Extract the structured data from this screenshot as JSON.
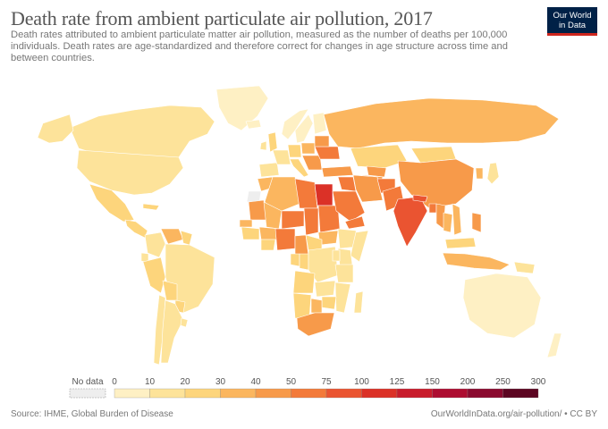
{
  "title": "Death rate from ambient particulate air pollution, 2017",
  "subtitle": "Death rates attributed to ambient particulate matter air pollution, measured as the number of deaths per 100,000 individuals. Death rates are age-standardized and therefore correct for changes in age structure across time and between countries.",
  "logo": {
    "line1": "Our World",
    "line2": "in Data"
  },
  "legend": {
    "no_data_label": "No data",
    "no_data_color": "#eeeeee",
    "ticks": [
      "0",
      "10",
      "20",
      "30",
      "40",
      "50",
      "75",
      "100",
      "125",
      "150",
      "200",
      "250",
      "300"
    ],
    "colors": [
      "#fef0c4",
      "#fde39a",
      "#fdd57c",
      "#fbb65f",
      "#f79a4a",
      "#f37a3a",
      "#ea5431",
      "#db3127",
      "#c81c2c",
      "#ad0d31",
      "#8a0a2f",
      "#5c0622"
    ]
  },
  "footer": {
    "source": "Source: IHME, Global Burden of Disease",
    "url": "OurWorldInData.org/air-pollution/",
    "license": "• CC BY"
  },
  "regions": [
    {
      "name": "Canada",
      "class": 2
    },
    {
      "name": "Alaska",
      "class": 2
    },
    {
      "name": "Greenland",
      "class": 1
    },
    {
      "name": "United States",
      "class": 2
    },
    {
      "name": "Mexico",
      "class": 3
    },
    {
      "name": "Central America",
      "class": 3
    },
    {
      "name": "Cuba",
      "class": 3
    },
    {
      "name": "Colombia",
      "class": 2
    },
    {
      "name": "Venezuela",
      "class": 4
    },
    {
      "name": "Guyana",
      "class": 3
    },
    {
      "name": "Ecuador",
      "class": 2
    },
    {
      "name": "Peru",
      "class": 3
    },
    {
      "name": "Brazil",
      "class": 2
    },
    {
      "name": "Bolivia",
      "class": 3
    },
    {
      "name": "Paraguay",
      "class": 3
    },
    {
      "name": "Chile",
      "class": 2
    },
    {
      "name": "Argentina",
      "class": 2
    },
    {
      "name": "Uruguay",
      "class": 2
    },
    {
      "name": "Iceland",
      "class": 1
    },
    {
      "name": "Ireland",
      "class": 2
    },
    {
      "name": "United Kingdom",
      "class": 3
    },
    {
      "name": "Norway",
      "class": 1
    },
    {
      "name": "Sweden",
      "class": 1
    },
    {
      "name": "Finland",
      "class": 1
    },
    {
      "name": "Spain",
      "class": 2
    },
    {
      "name": "France",
      "class": 2
    },
    {
      "name": "Germany",
      "class": 3
    },
    {
      "name": "Poland",
      "class": 4
    },
    {
      "name": "Italy",
      "class": 3
    },
    {
      "name": "Balkans",
      "class": 5
    },
    {
      "name": "Ukraine",
      "class": 6
    },
    {
      "name": "Belarus",
      "class": 5
    },
    {
      "name": "Russia",
      "class": 4
    },
    {
      "name": "Turkey",
      "class": 5
    },
    {
      "name": "Kazakhstan",
      "class": 3
    },
    {
      "name": "Uzbekistan",
      "class": 5
    },
    {
      "name": "Turkmenistan",
      "class": 5
    },
    {
      "name": "Mongolia",
      "class": 3
    },
    {
      "name": "China",
      "class": 5
    },
    {
      "name": "Korea",
      "class": 4
    },
    {
      "name": "Japan",
      "class": 2
    },
    {
      "name": "Morocco",
      "class": 4
    },
    {
      "name": "Western Sahara",
      "class": 0
    },
    {
      "name": "Algeria",
      "class": 4
    },
    {
      "name": "Libya",
      "class": 6
    },
    {
      "name": "Egypt",
      "class": 8
    },
    {
      "name": "Mauritania",
      "class": 5
    },
    {
      "name": "Mali",
      "class": 4
    },
    {
      "name": "Niger",
      "class": 6
    },
    {
      "name": "Chad",
      "class": 6
    },
    {
      "name": "Sudan",
      "class": 6
    },
    {
      "name": "South Sudan",
      "class": 4
    },
    {
      "name": "Ethiopia",
      "class": 2
    },
    {
      "name": "Somalia",
      "class": 2
    },
    {
      "name": "Senegal",
      "class": 4
    },
    {
      "name": "Guinea",
      "class": 3
    },
    {
      "name": "Burkina Faso",
      "class": 4
    },
    {
      "name": "Ghana",
      "class": 3
    },
    {
      "name": "Nigeria",
      "class": 6
    },
    {
      "name": "Cameroon",
      "class": 5
    },
    {
      "name": "Central African Republic",
      "class": 3
    },
    {
      "name": "Gabon",
      "class": 3
    },
    {
      "name": "Congo",
      "class": 3
    },
    {
      "name": "DR Congo",
      "class": 2
    },
    {
      "name": "Kenya",
      "class": 2
    },
    {
      "name": "Uganda",
      "class": 2
    },
    {
      "name": "Tanzania",
      "class": 2
    },
    {
      "name": "Angola",
      "class": 3
    },
    {
      "name": "Zambia",
      "class": 2
    },
    {
      "name": "Mozambique",
      "class": 2
    },
    {
      "name": "Zimbabwe",
      "class": 3
    },
    {
      "name": "Namibia",
      "class": 3
    },
    {
      "name": "Botswana",
      "class": 4
    },
    {
      "name": "South Africa",
      "class": 5
    },
    {
      "name": "Madagascar",
      "class": 2
    },
    {
      "name": "Saudi Arabia",
      "class": 6
    },
    {
      "name": "Yemen",
      "class": 6
    },
    {
      "name": "Iraq",
      "class": 6
    },
    {
      "name": "Iran",
      "class": 5
    },
    {
      "name": "Afghanistan",
      "class": 6
    },
    {
      "name": "Pakistan",
      "class": 6
    },
    {
      "name": "India",
      "class": 7
    },
    {
      "name": "Nepal",
      "class": 7
    },
    {
      "name": "Bangladesh",
      "class": 6
    },
    {
      "name": "Myanmar",
      "class": 5
    },
    {
      "name": "Thailand",
      "class": 4
    },
    {
      "name": "Vietnam",
      "class": 4
    },
    {
      "name": "Malaysia",
      "class": 3
    },
    {
      "name": "Indonesia",
      "class": 4
    },
    {
      "name": "Philippines",
      "class": 5
    },
    {
      "name": "Papua New Guinea",
      "class": 2
    },
    {
      "name": "Australia",
      "class": 1
    },
    {
      "name": "New Zealand",
      "class": 1
    }
  ]
}
